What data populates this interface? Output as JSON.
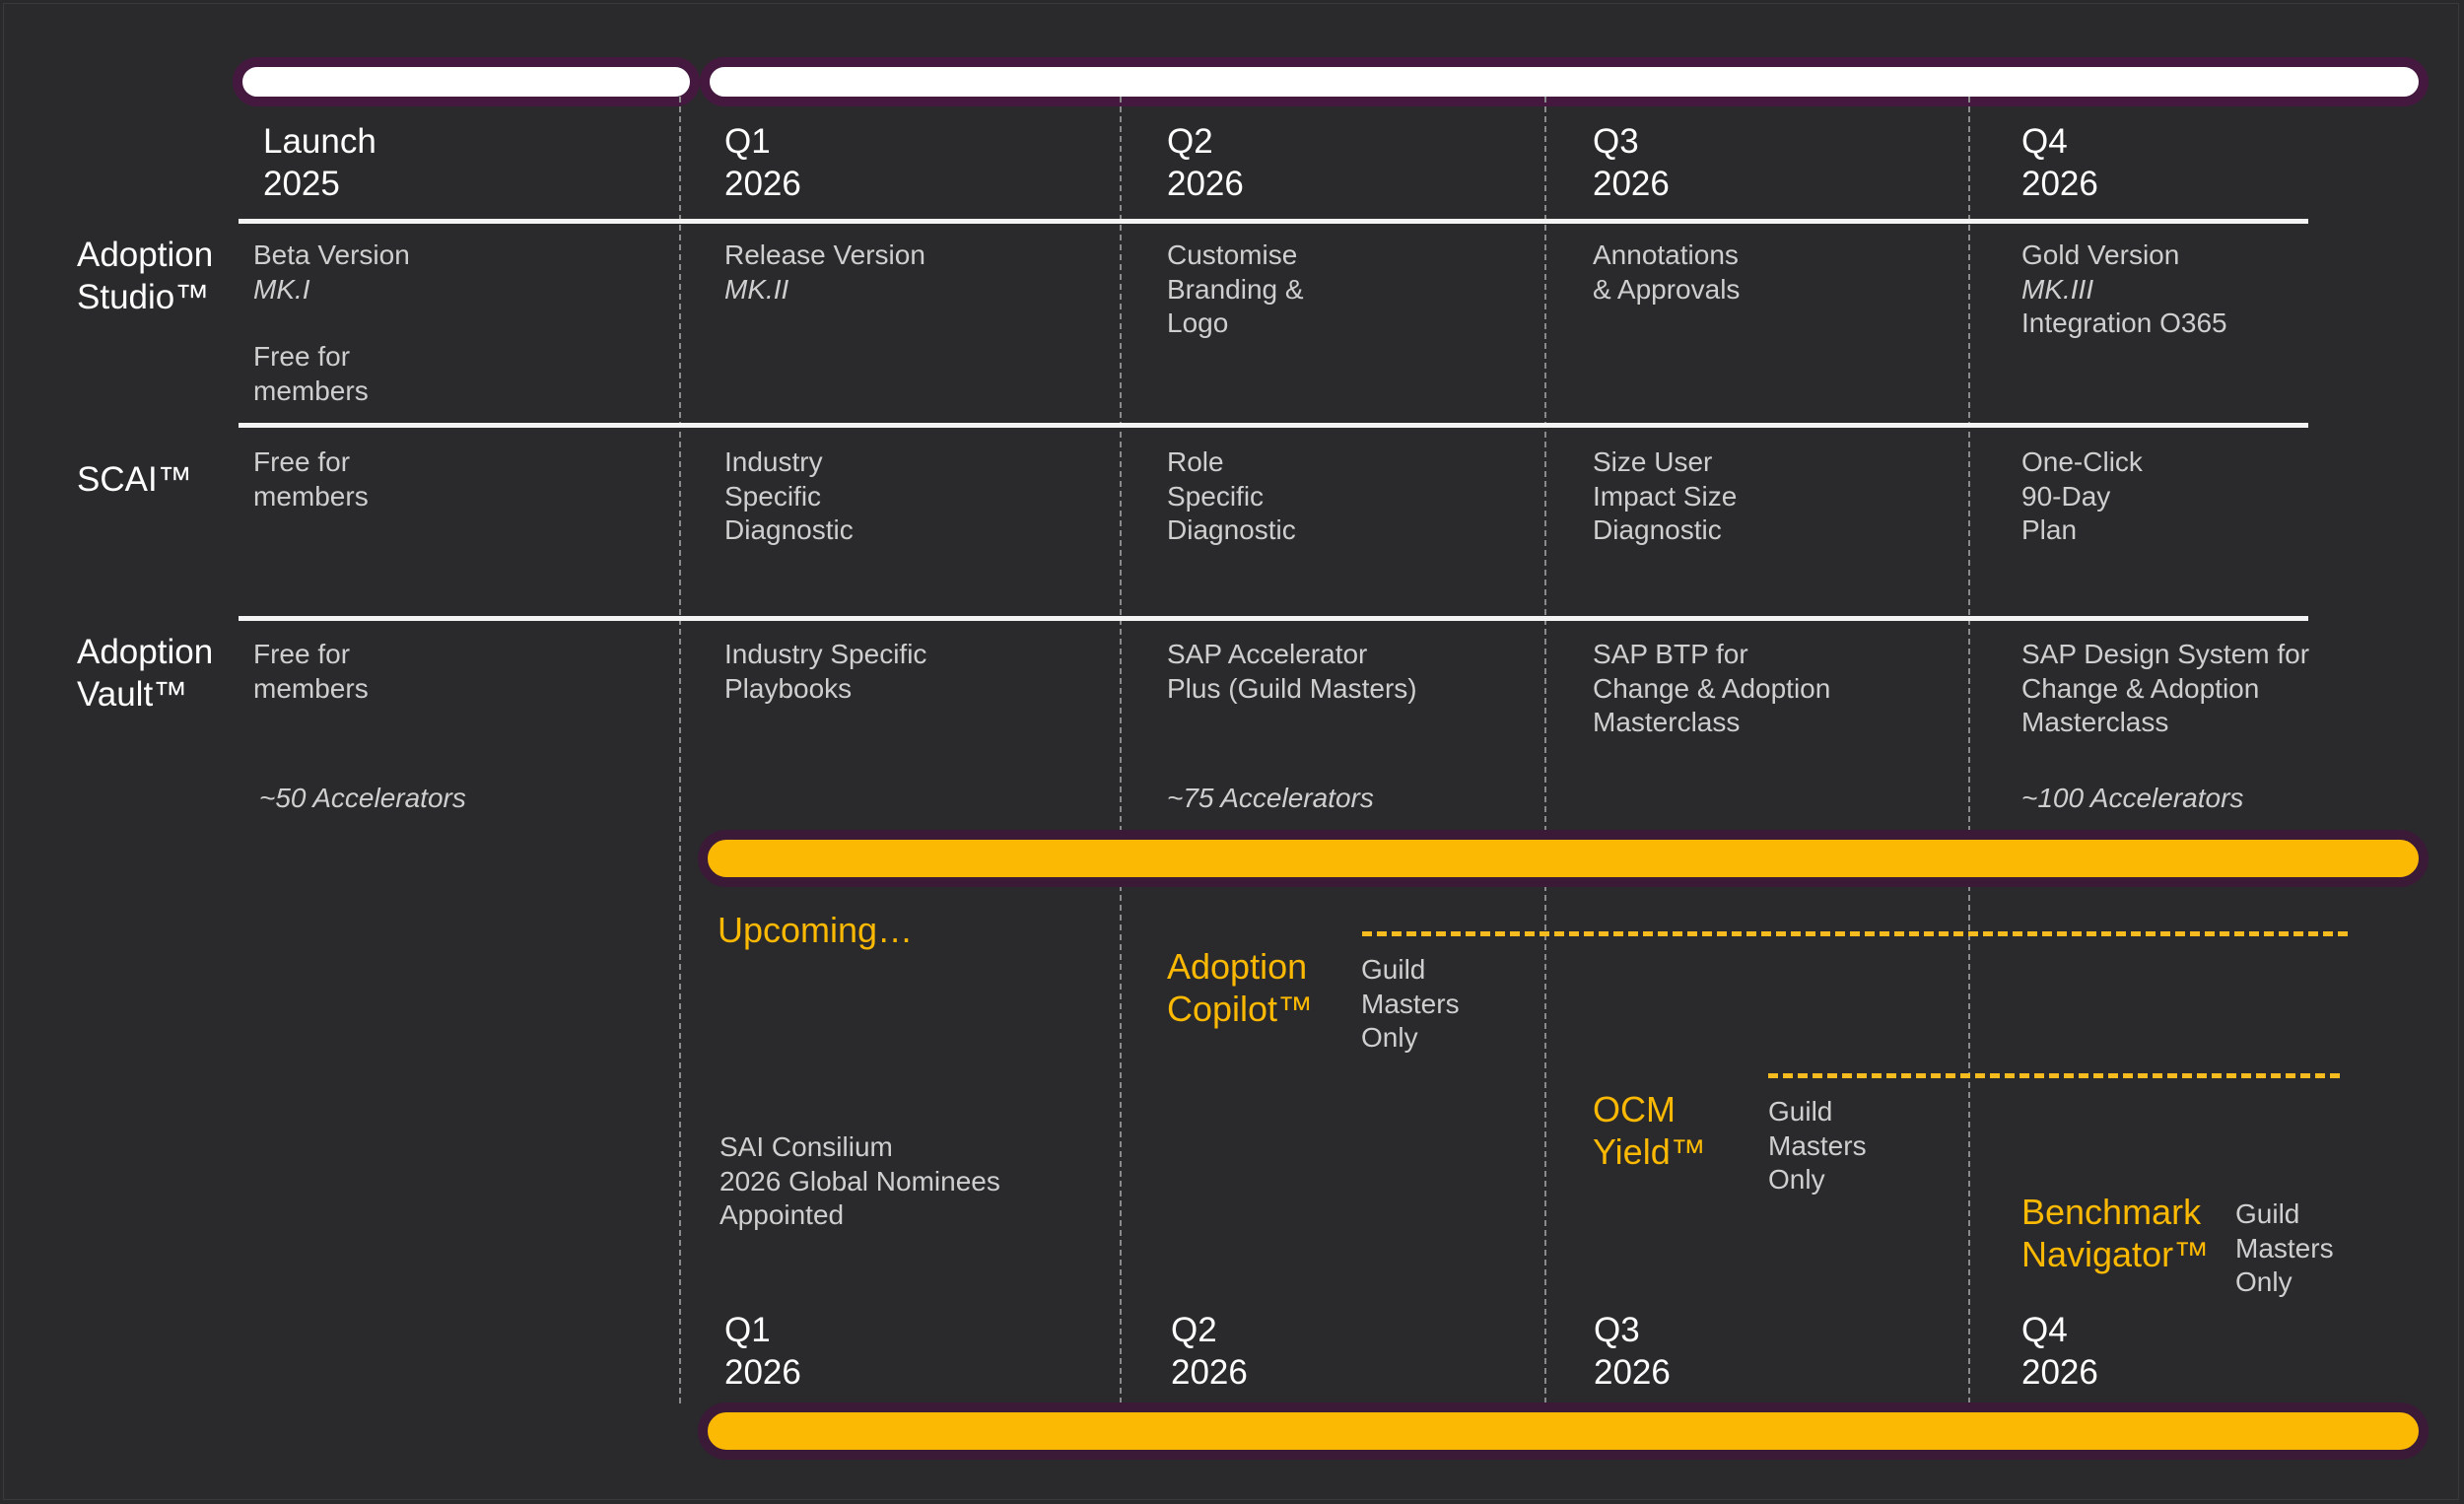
{
  "header": {
    "columns": [
      {
        "label": "Launch",
        "year": "2025"
      },
      {
        "label": "Q1",
        "year": "2026"
      },
      {
        "label": "Q2",
        "year": "2026"
      },
      {
        "label": "Q3",
        "year": "2026"
      },
      {
        "label": "Q4",
        "year": "2026"
      }
    ]
  },
  "rows": [
    {
      "name": "Adoption\nStudio™",
      "cells": [
        {
          "line1": "Beta Version",
          "italic": "MK.I",
          "extra": "Free for\nmembers"
        },
        {
          "line1": "Release Version",
          "italic": "MK.II"
        },
        {
          "line1": "Customise\nBranding &\nLogo"
        },
        {
          "line1": "Annotations\n& Approvals"
        },
        {
          "line1": "Gold Version",
          "italic": "MK.III",
          "extra": "Integration O365"
        }
      ]
    },
    {
      "name": "SCAI™",
      "cells": [
        {
          "line1": "Free for\nmembers"
        },
        {
          "line1": "Industry\nSpecific\nDiagnostic"
        },
        {
          "line1": "Role\nSpecific\nDiagnostic"
        },
        {
          "line1": "Size User\nImpact Size\nDiagnostic"
        },
        {
          "line1": "One-Click\n90-Day\nPlan"
        }
      ]
    },
    {
      "name": "Adoption\nVault™",
      "cells": [
        {
          "line1": "Free for\nmembers",
          "accelerators": "~50 Accelerators"
        },
        {
          "line1": "Industry Specific\nPlaybooks"
        },
        {
          "line1": "SAP Accelerator\nPlus (Guild Masters)",
          "accelerators": "~75 Accelerators"
        },
        {
          "line1": "SAP BTP for\nChange & Adoption\nMasterclass"
        },
        {
          "line1": "SAP Design System for\nChange & Adoption\nMasterclass",
          "accelerators": "~100 Accelerators"
        }
      ]
    }
  ],
  "upcoming": {
    "title": "Upcoming…",
    "consilium": "SAI Consilium\n2026 Global Nominees\nAppointed",
    "products": [
      {
        "name": "Adoption\nCopilot™",
        "note": "Guild\nMasters\nOnly"
      },
      {
        "name": "OCM\nYield™",
        "note": "Guild\nMasters\nOnly"
      },
      {
        "name": "Benchmark\nNavigator™",
        "note": "Guild\nMasters\nOnly"
      }
    ],
    "footer_columns": [
      {
        "label": "Q1",
        "year": "2026"
      },
      {
        "label": "Q2",
        "year": "2026"
      },
      {
        "label": "Q3",
        "year": "2026"
      },
      {
        "label": "Q4",
        "year": "2026"
      }
    ]
  },
  "colors": {
    "background": "#2a292b",
    "accent_gold": "#fbb904",
    "bar_border_purple": "#44183f",
    "header_bar": "#ffffff"
  }
}
